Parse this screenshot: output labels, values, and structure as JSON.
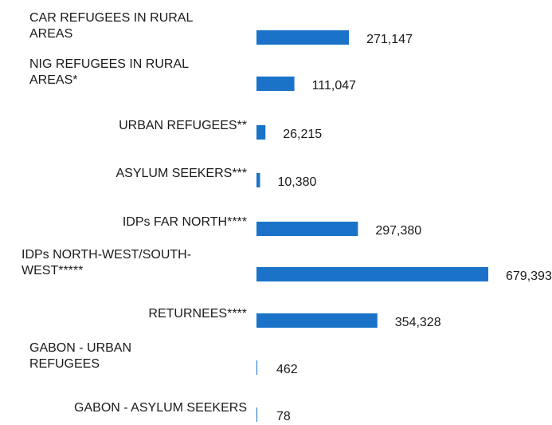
{
  "chart_data": {
    "type": "bar",
    "orientation": "horizontal",
    "bar_color": "#1a73c8",
    "categories": [
      "CAR REFUGEES IN RURAL AREAS",
      "NIG REFUGEES IN RURAL AREAS*",
      "URBAN REFUGEES**",
      "ASYLUM SEEKERS***",
      "IDPs FAR NORTH****",
      "IDPs NORTH-WEST/SOUTH-WEST*****",
      "RETURNEES****",
      "GABON - URBAN REFUGEES",
      "GABON - ASYLUM SEEKERS"
    ],
    "category_lines": [
      [
        "CAR REFUGEES IN RURAL",
        "AREAS"
      ],
      [
        "NIG REFUGEES IN RURAL",
        "AREAS*"
      ],
      [
        "URBAN REFUGEES**"
      ],
      [
        "ASYLUM SEEKERS***"
      ],
      [
        "IDPs FAR NORTH****"
      ],
      [
        "IDPs NORTH-WEST/SOUTH-",
        "WEST*****"
      ],
      [
        "RETURNEES****"
      ],
      [
        "GABON - URBAN",
        "REFUGEES"
      ],
      [
        "GABON - ASYLUM SEEKERS"
      ]
    ],
    "label_align": [
      "left",
      "left",
      "right",
      "right",
      "right",
      "left",
      "right",
      "left",
      "right"
    ],
    "values": [
      271147,
      111047,
      26215,
      10380,
      297380,
      679393,
      354328,
      462,
      78
    ],
    "value_labels": [
      "271,147",
      "111,047",
      "26,215",
      "10,380",
      "297,380",
      "679,393",
      "354,328",
      "462",
      "78"
    ],
    "xlim": [
      0,
      679393
    ],
    "grid": false,
    "legend": false
  }
}
